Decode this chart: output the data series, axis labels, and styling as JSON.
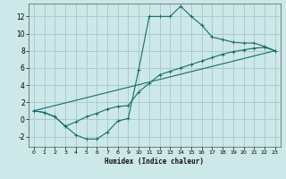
{
  "xlabel": "Humidex (Indice chaleur)",
  "bg_color": "#cce8e8",
  "grid_color": "#aacccc",
  "line_color": "#1a6b6b",
  "xlim": [
    -0.5,
    23.5
  ],
  "ylim": [
    -3.2,
    13.5
  ],
  "xticks": [
    0,
    1,
    2,
    3,
    4,
    5,
    6,
    7,
    8,
    9,
    10,
    11,
    12,
    13,
    14,
    15,
    16,
    17,
    18,
    19,
    20,
    21,
    22,
    23
  ],
  "yticks": [
    -2,
    0,
    2,
    4,
    6,
    8,
    10,
    12
  ],
  "curve1_x": [
    0,
    1,
    2,
    3,
    4,
    5,
    6,
    7,
    8,
    9,
    10,
    11,
    12,
    13,
    14,
    15,
    16,
    17,
    18,
    19,
    20,
    21,
    22,
    23
  ],
  "curve1_y": [
    1.0,
    0.8,
    0.3,
    -0.8,
    -1.8,
    -2.3,
    -2.3,
    -1.5,
    -0.2,
    0.1,
    5.8,
    12.0,
    12.0,
    12.0,
    13.2,
    12.0,
    11.0,
    9.6,
    9.3,
    9.0,
    8.9,
    8.9,
    8.5,
    8.0
  ],
  "curve2_x": [
    0,
    1,
    2,
    3,
    4,
    5,
    6,
    7,
    8,
    9,
    10,
    11,
    12,
    13,
    14,
    15,
    16,
    17,
    18,
    19,
    20,
    21,
    22,
    23
  ],
  "curve2_y": [
    1.0,
    0.8,
    0.3,
    -0.8,
    -0.3,
    0.3,
    0.7,
    1.2,
    1.5,
    1.6,
    3.2,
    4.2,
    5.2,
    5.6,
    6.0,
    6.4,
    6.8,
    7.2,
    7.6,
    7.9,
    8.1,
    8.3,
    8.4,
    8.0
  ],
  "curve3_x": [
    0,
    23
  ],
  "curve3_y": [
    1.0,
    8.0
  ]
}
